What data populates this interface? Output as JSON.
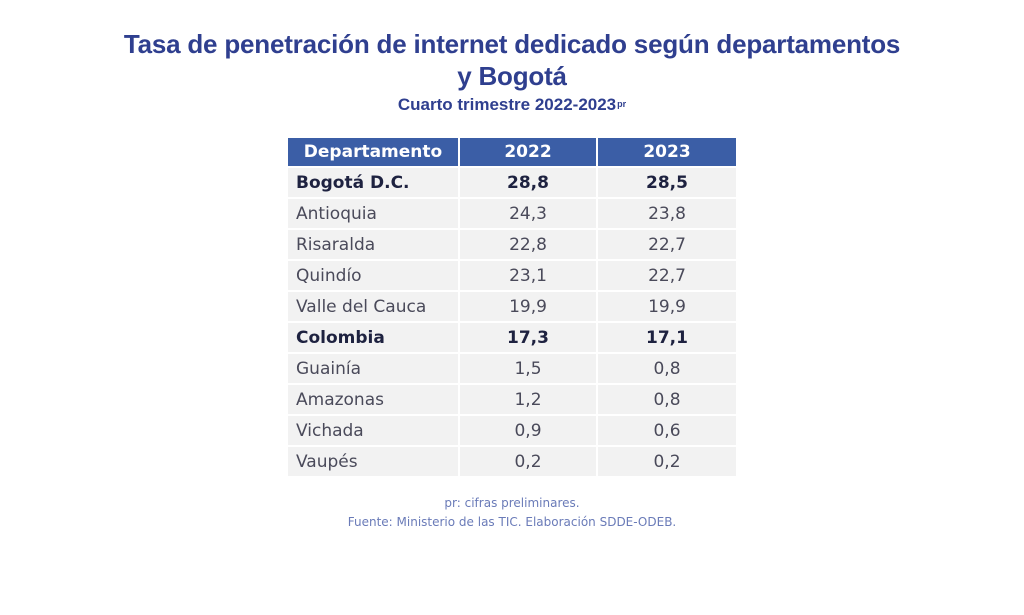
{
  "header": {
    "title_line1": "Tasa de penetración de internet dedicado según departamentos",
    "title_line2": "y Bogotá",
    "subtitle": "Cuarto trimestre 2022-2023",
    "subtitle_superscript": "pr"
  },
  "chart_data": {
    "type": "table",
    "title": "Tasa de penetración de internet dedicado según departamentos y Bogotá",
    "subtitle": "Cuarto trimestre 2022-2023pr",
    "columns": [
      "Departamento",
      "2022",
      "2023"
    ],
    "rows": [
      {
        "name": "Bogotá D.C.",
        "v2022": "28,8",
        "v2023": "28,5",
        "bold": true
      },
      {
        "name": "Antioquia",
        "v2022": "24,3",
        "v2023": "23,8",
        "bold": false
      },
      {
        "name": "Risaralda",
        "v2022": "22,8",
        "v2023": "22,7",
        "bold": false
      },
      {
        "name": "Quindío",
        "v2022": "23,1",
        "v2023": "22,7",
        "bold": false
      },
      {
        "name": "Valle del Cauca",
        "v2022": "19,9",
        "v2023": "19,9",
        "bold": false
      },
      {
        "name": "Colombia",
        "v2022": "17,3",
        "v2023": "17,1",
        "bold": true
      },
      {
        "name": "Guainía",
        "v2022": "1,5",
        "v2023": "0,8",
        "bold": false
      },
      {
        "name": "Amazonas",
        "v2022": "1,2",
        "v2023": "0,8",
        "bold": false
      },
      {
        "name": "Vichada",
        "v2022": "0,9",
        "v2023": "0,6",
        "bold": false
      },
      {
        "name": "Vaupés",
        "v2022": "0,2",
        "v2023": "0,2",
        "bold": false
      }
    ],
    "series": [
      {
        "name": "2022",
        "values": [
          28.8,
          24.3,
          22.8,
          23.1,
          19.9,
          17.3,
          1.5,
          1.2,
          0.9,
          0.2
        ]
      },
      {
        "name": "2023",
        "values": [
          28.5,
          23.8,
          22.7,
          22.7,
          19.9,
          17.1,
          0.8,
          0.8,
          0.6,
          0.2
        ]
      }
    ],
    "categories": [
      "Bogotá D.C.",
      "Antioquia",
      "Risaralda",
      "Quindío",
      "Valle del Cauca",
      "Colombia",
      "Guainía",
      "Amazonas",
      "Vichada",
      "Vaupés"
    ]
  },
  "notes": {
    "preliminary": "pr: cifras preliminares.",
    "source": "Fuente: Ministerio de las TIC. Elaboración SDDE-ODEB."
  },
  "colors": {
    "title": "#2f3f8f",
    "header_bg": "#3b5ea6",
    "row_bg": "#f2f2f2",
    "notes": "#6a7bb8"
  }
}
